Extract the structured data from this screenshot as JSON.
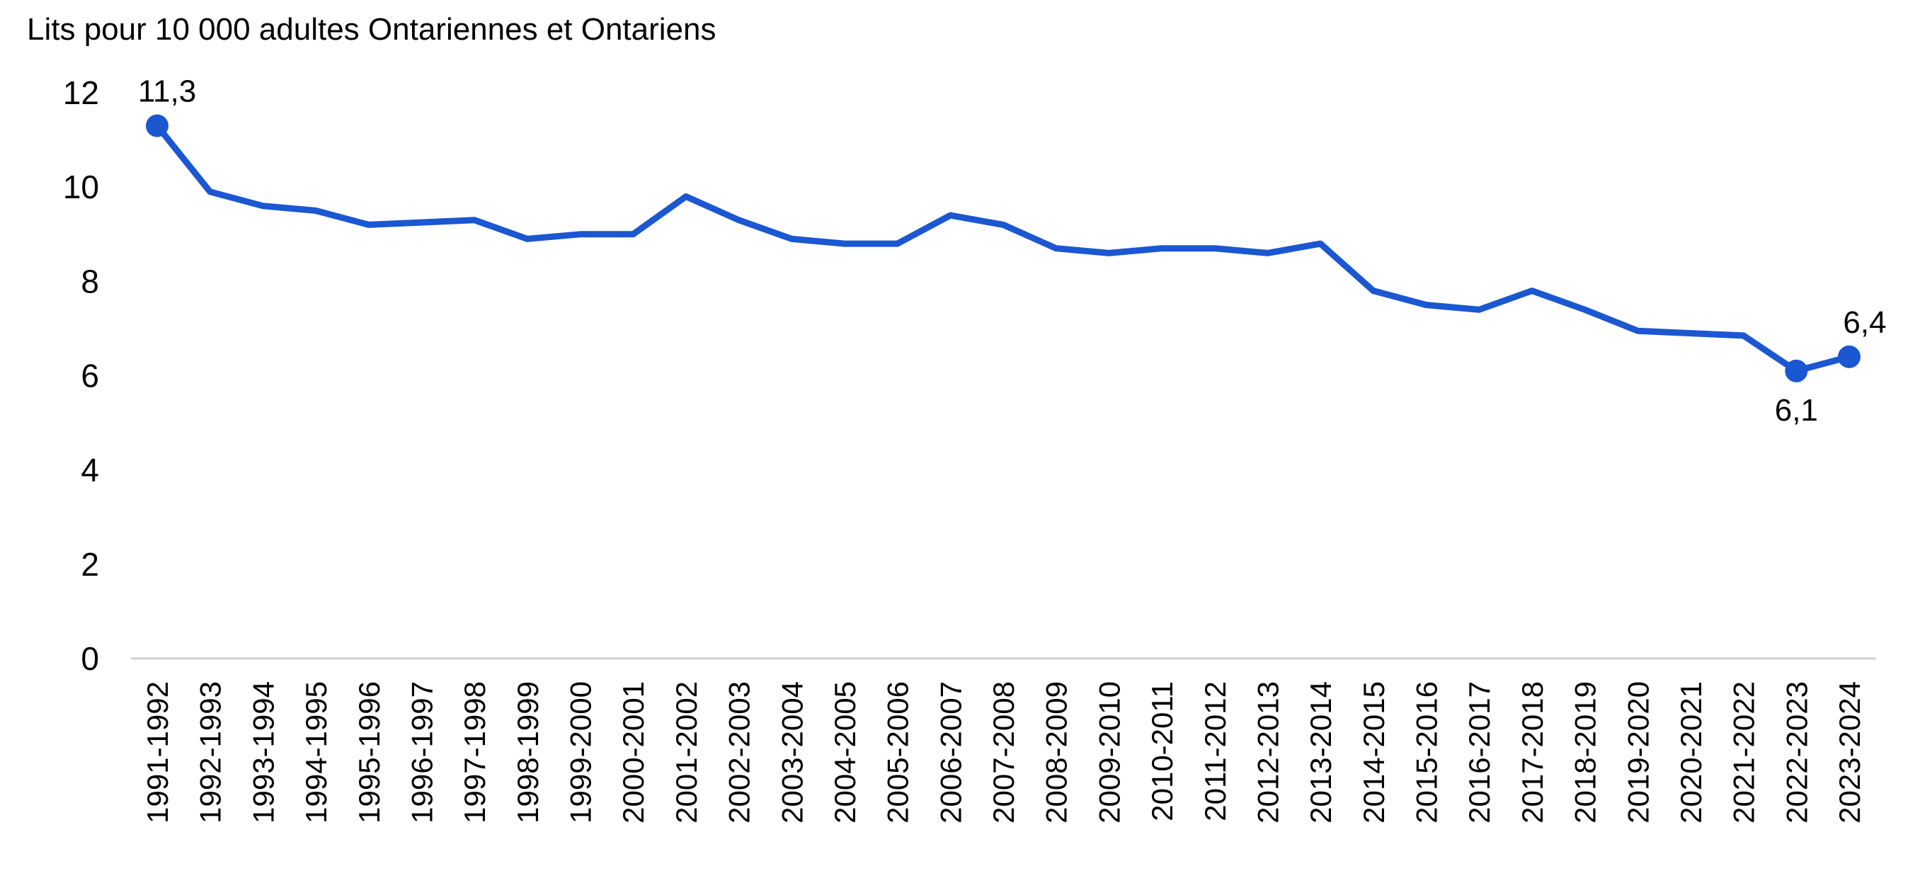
{
  "chart_data": {
    "type": "line",
    "title": "",
    "ylabel": "Lits pour 10 000 adultes Ontariennes et Ontariens",
    "xlabel": "",
    "ylim": [
      0,
      12
    ],
    "yticks": [
      0,
      2,
      4,
      6,
      8,
      10,
      12
    ],
    "ytick_labels": [
      "0",
      "2",
      "4",
      "6",
      "8",
      "10",
      "12"
    ],
    "grid": false,
    "legend": "none",
    "categories": [
      "1991-1992",
      "1992-1993",
      "1993-1994",
      "1994-1995",
      "1995-1996",
      "1996-1997",
      "1997-1998",
      "1998-1999",
      "1999-2000",
      "2000-2001",
      "2001-2002",
      "2002-2003",
      "2003-2004",
      "2004-2005",
      "2005-2006",
      "2006-2007",
      "2007-2008",
      "2008-2009",
      "2009-2010",
      "2010-2011",
      "2011-2012",
      "2012-2013",
      "2013-2014",
      "2014-2015",
      "2015-2016",
      "2016-2017",
      "2017-2018",
      "2018-2019",
      "2019-2020",
      "2020-2021",
      "2021-2022",
      "2022-2023",
      "2023-2024"
    ],
    "series": [
      {
        "color": "#1a57d1",
        "values": [
          11.3,
          9.9,
          9.6,
          9.5,
          9.2,
          9.25,
          9.3,
          8.9,
          9.0,
          9.0,
          9.8,
          9.3,
          8.9,
          8.8,
          8.8,
          9.4,
          9.2,
          8.7,
          8.6,
          8.7,
          8.7,
          8.6,
          8.8,
          7.8,
          7.5,
          7.4,
          7.8,
          7.4,
          6.95,
          6.9,
          6.85,
          6.1,
          6.4
        ]
      }
    ],
    "data_labels": [
      {
        "index": 0,
        "text": "11,3",
        "position": "above"
      },
      {
        "index": 31,
        "text": "6,1",
        "position": "below"
      },
      {
        "index": 32,
        "text": "6,4",
        "position": "above"
      }
    ],
    "marker_color": "#1a57d1",
    "axis_color": "#d0d0d0"
  }
}
